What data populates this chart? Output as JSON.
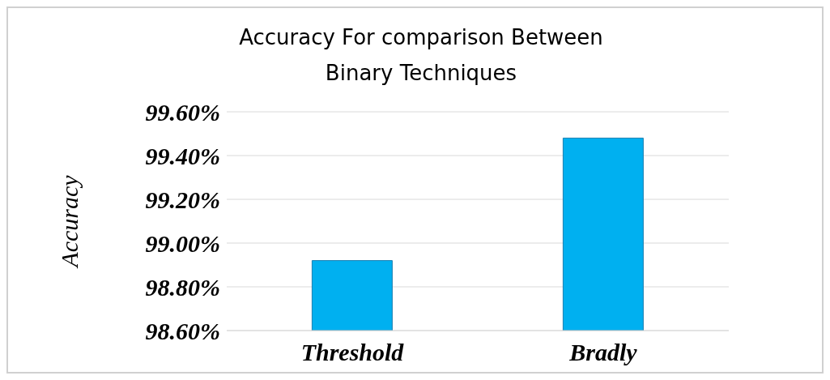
{
  "chart_data": {
    "type": "bar",
    "title": "Accuracy For comparison Between Binary Techniques",
    "ylabel": "Accuracy",
    "categories": [
      "Threshold",
      "Bradly"
    ],
    "values": [
      98.92,
      99.48
    ],
    "color": "#00b0f0",
    "ylim": [
      98.6,
      99.6
    ],
    "yticks": [
      {
        "value": 98.6,
        "label": "98.60%"
      },
      {
        "value": 98.8,
        "label": "98.80%"
      },
      {
        "value": 99.0,
        "label": "99.00%"
      },
      {
        "value": 99.2,
        "label": "99.20%"
      },
      {
        "value": 99.4,
        "label": "99.40%"
      },
      {
        "value": 99.6,
        "label": "99.60%"
      }
    ],
    "grid": "y"
  }
}
